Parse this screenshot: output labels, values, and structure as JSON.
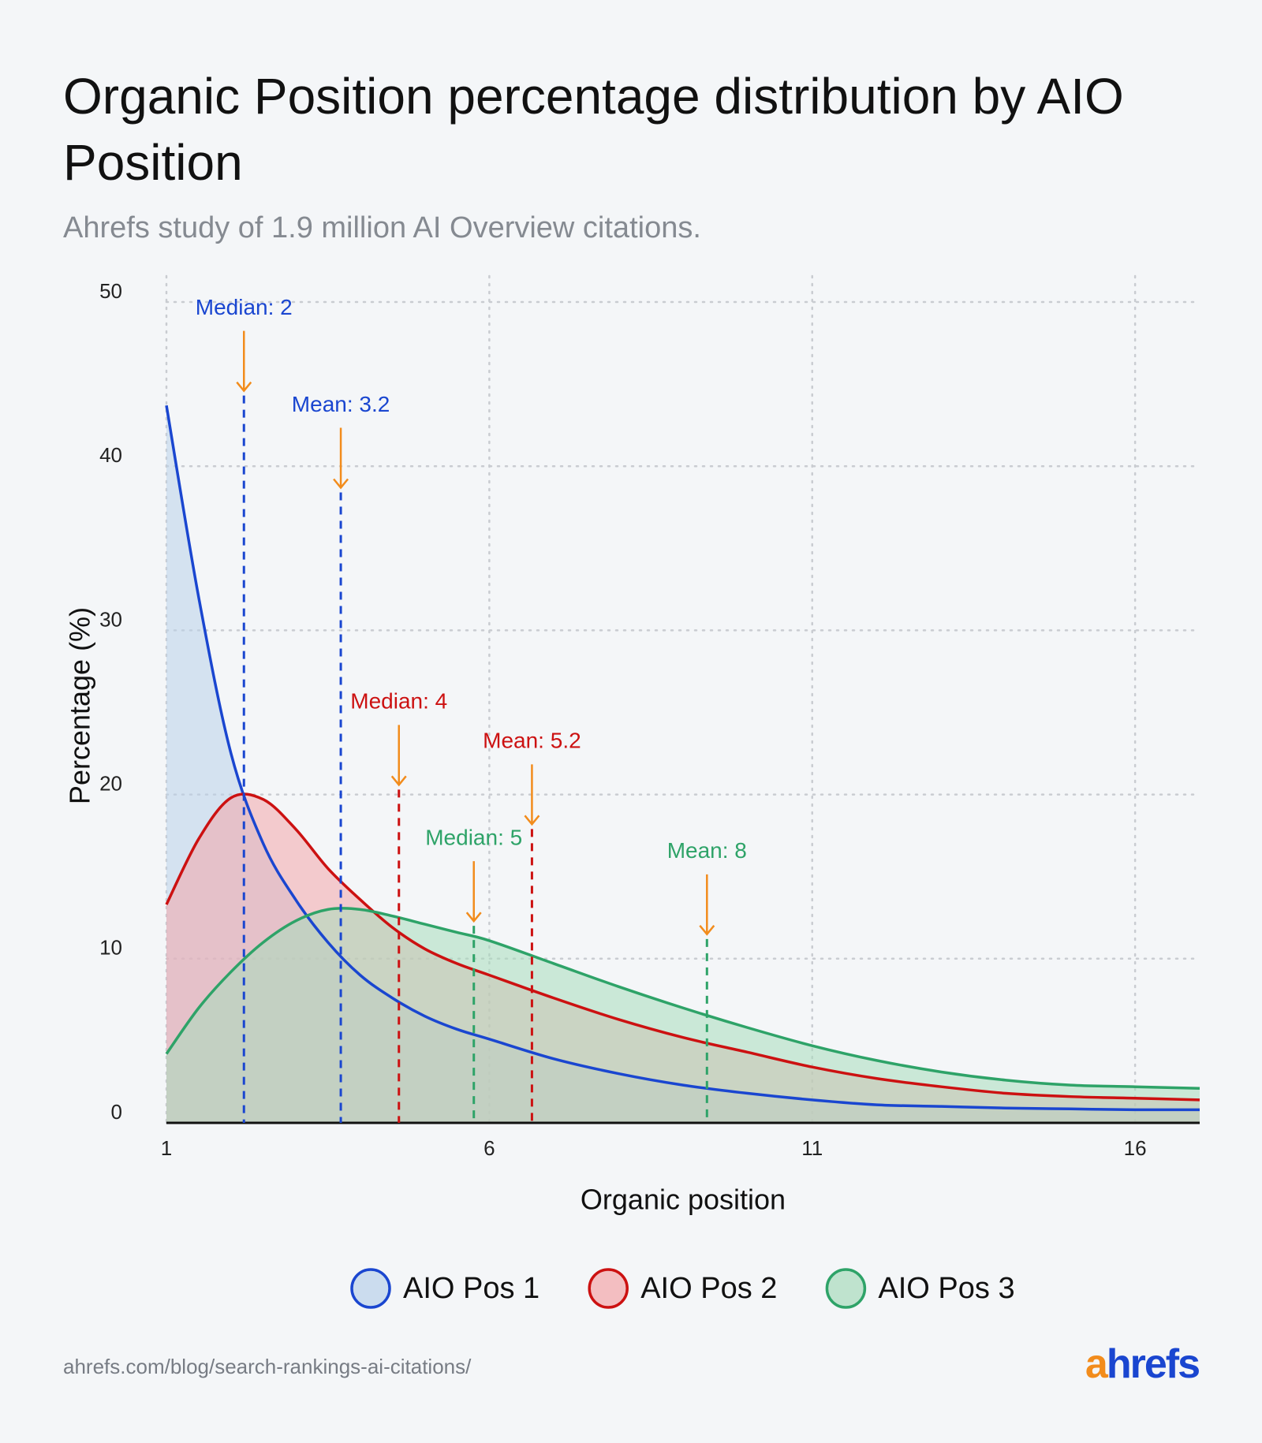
{
  "chart_data": {
    "type": "area",
    "title": "Organic Position percentage distribution by AIO Position",
    "subtitle": "Ahrefs study of 1.9 million AI Overview citations.",
    "x_label": "Organic position",
    "y_label": "Percentage (%)",
    "xlim": [
      1,
      17
    ],
    "ylim": [
      0,
      50
    ],
    "xticks": [
      1,
      6,
      11,
      16
    ],
    "yticks": [
      0,
      10,
      20,
      30,
      40,
      50
    ],
    "grid": true,
    "legend": "bottom",
    "x": [
      1,
      1.5,
      2,
      2.5,
      3,
      3.5,
      4,
      4.5,
      5,
      5.5,
      6,
      7,
      8,
      9,
      10,
      11,
      12,
      13,
      14,
      15,
      16,
      17
    ],
    "series": [
      {
        "name": "AIO Pos 1",
        "color": "#1a46d0",
        "fill": "#b9d2ea",
        "values": [
          43.7,
          32,
          22.5,
          17.0,
          13.6,
          11.0,
          9.0,
          7.6,
          6.5,
          5.7,
          5.1,
          3.9,
          3.0,
          2.3,
          1.8,
          1.4,
          1.1,
          1.0,
          0.9,
          0.85,
          0.8,
          0.8
        ]
      },
      {
        "name": "AIO Pos 2",
        "color": "#cc1111",
        "fill": "#f2a6a9",
        "values": [
          13.3,
          17.3,
          19.8,
          19.7,
          17.9,
          15.5,
          13.6,
          11.9,
          10.6,
          9.7,
          9.0,
          7.6,
          6.3,
          5.2,
          4.3,
          3.4,
          2.7,
          2.2,
          1.8,
          1.6,
          1.5,
          1.4
        ]
      },
      {
        "name": "AIO Pos 3",
        "color": "#2ea368",
        "fill": "#a8dcbc",
        "values": [
          4.2,
          7.0,
          9.2,
          11.0,
          12.3,
          13.0,
          13.0,
          12.6,
          12.1,
          11.6,
          11.1,
          9.7,
          8.3,
          7.0,
          5.8,
          4.7,
          3.8,
          3.1,
          2.6,
          2.3,
          2.2,
          2.1
        ]
      }
    ],
    "markers": [
      {
        "label": "Median: 2",
        "x": 2.2,
        "top": 44.3,
        "color": "#1a46d0"
      },
      {
        "label": "Mean: 3.2",
        "x": 3.7,
        "top": 38.4,
        "color": "#1a46d0"
      },
      {
        "label": "Median: 4",
        "x": 4.6,
        "top": 20.3,
        "color": "#cc1111"
      },
      {
        "label": "Mean: 5.2",
        "x": 6.66,
        "top": 17.9,
        "color": "#cc1111"
      },
      {
        "label": "Median: 5",
        "x": 5.76,
        "top": 12.0,
        "color": "#2ea368"
      },
      {
        "label": "Mean: 8",
        "x": 9.37,
        "top": 11.2,
        "color": "#2ea368"
      }
    ],
    "arrow_color": "#f28c1c",
    "source": "ahrefs.com/blog/search-rankings-ai-citations/",
    "logo": "ahrefs"
  }
}
